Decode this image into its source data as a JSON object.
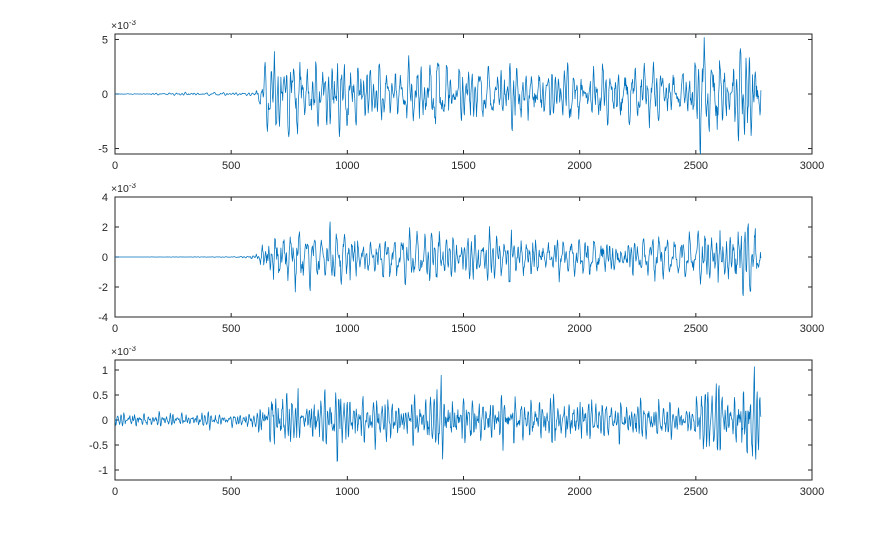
{
  "figure": {
    "background": "#ffffff",
    "axis_color": "#262626",
    "line_color": "#0072BD"
  },
  "chart_data": [
    {
      "type": "line",
      "xlim": [
        0,
        3000
      ],
      "ylim": [
        -5.5,
        5.5
      ],
      "xticks": [
        0,
        500,
        1000,
        1500,
        2000,
        2500,
        3000
      ],
      "yticks": [
        -5,
        0,
        5
      ],
      "scale_label": {
        "base": "×10",
        "exponent": "-3"
      },
      "line_color": "#0072BD",
      "grid": false,
      "legend": null,
      "signal": {
        "x_start": 0,
        "x_end": 2780,
        "step": 2,
        "seed": 101,
        "components": 9,
        "envelope": [
          [
            0,
            0.02
          ],
          [
            145,
            0.03
          ],
          [
            165,
            0.13
          ],
          [
            560,
            0.12
          ],
          [
            595,
            0.3
          ],
          [
            625,
            1.6
          ],
          [
            655,
            2.9
          ],
          [
            695,
            3.6
          ],
          [
            735,
            2.7
          ],
          [
            775,
            3.9
          ],
          [
            815,
            2.6
          ],
          [
            855,
            3.1
          ],
          [
            895,
            2.3
          ],
          [
            935,
            3.4
          ],
          [
            975,
            4.9
          ],
          [
            1015,
            3.0
          ],
          [
            1060,
            3.3
          ],
          [
            1110,
            2.3
          ],
          [
            1160,
            2.7
          ],
          [
            1220,
            2.4
          ],
          [
            1280,
            2.7
          ],
          [
            1340,
            2.3
          ],
          [
            1400,
            3.5
          ],
          [
            1450,
            2.4
          ],
          [
            1520,
            2.8
          ],
          [
            1590,
            2.3
          ],
          [
            1660,
            2.6
          ],
          [
            1730,
            2.9
          ],
          [
            1800,
            2.3
          ],
          [
            1870,
            2.6
          ],
          [
            1940,
            2.8
          ],
          [
            2010,
            2.3
          ],
          [
            2080,
            2.6
          ],
          [
            2150,
            2.2
          ],
          [
            2220,
            2.5
          ],
          [
            2290,
            2.7
          ],
          [
            2360,
            2.2
          ],
          [
            2430,
            2.1
          ],
          [
            2490,
            2.9
          ],
          [
            2530,
            4.6
          ],
          [
            2565,
            2.6
          ],
          [
            2605,
            5.3
          ],
          [
            2645,
            3.0
          ],
          [
            2685,
            4.7
          ],
          [
            2725,
            5.2
          ],
          [
            2755,
            4.5
          ],
          [
            2780,
            3.2
          ]
        ]
      }
    },
    {
      "type": "line",
      "xlim": [
        0,
        3000
      ],
      "ylim": [
        -4,
        4
      ],
      "xticks": [
        0,
        500,
        1000,
        1500,
        2000,
        2500,
        3000
      ],
      "yticks": [
        -4,
        -2,
        0,
        2,
        4
      ],
      "scale_label": {
        "base": "×10",
        "exponent": "-3"
      },
      "line_color": "#0072BD",
      "grid": false,
      "legend": null,
      "signal": {
        "x_start": 0,
        "x_end": 2780,
        "step": 2,
        "seed": 202,
        "components": 9,
        "envelope": [
          [
            0,
            0.0
          ],
          [
            505,
            0.02
          ],
          [
            530,
            0.06
          ],
          [
            565,
            0.09
          ],
          [
            595,
            0.2
          ],
          [
            625,
            0.9
          ],
          [
            655,
            1.6
          ],
          [
            695,
            2.0
          ],
          [
            735,
            1.5
          ],
          [
            775,
            2.1
          ],
          [
            815,
            1.4
          ],
          [
            855,
            1.7
          ],
          [
            895,
            1.3
          ],
          [
            935,
            1.9
          ],
          [
            975,
            2.7
          ],
          [
            1015,
            1.7
          ],
          [
            1060,
            1.8
          ],
          [
            1110,
            1.3
          ],
          [
            1160,
            1.5
          ],
          [
            1220,
            1.3
          ],
          [
            1280,
            1.5
          ],
          [
            1340,
            1.3
          ],
          [
            1400,
            1.9
          ],
          [
            1450,
            1.3
          ],
          [
            1520,
            1.5
          ],
          [
            1590,
            1.3
          ],
          [
            1660,
            1.4
          ],
          [
            1730,
            1.6
          ],
          [
            1800,
            1.3
          ],
          [
            1870,
            1.4
          ],
          [
            1940,
            1.5
          ],
          [
            2010,
            1.3
          ],
          [
            2080,
            1.4
          ],
          [
            2150,
            1.2
          ],
          [
            2220,
            1.4
          ],
          [
            2290,
            1.5
          ],
          [
            2360,
            1.2
          ],
          [
            2430,
            1.1
          ],
          [
            2490,
            1.5
          ],
          [
            2530,
            2.3
          ],
          [
            2565,
            1.4
          ],
          [
            2605,
            2.6
          ],
          [
            2645,
            1.6
          ],
          [
            2685,
            2.4
          ],
          [
            2725,
            2.6
          ],
          [
            2755,
            2.2
          ],
          [
            2780,
            1.6
          ]
        ]
      }
    },
    {
      "type": "line",
      "xlim": [
        0,
        3000
      ],
      "ylim": [
        -1.2,
        1.2
      ],
      "xticks": [
        0,
        500,
        1000,
        1500,
        2000,
        2500,
        3000
      ],
      "yticks": [
        -1,
        -0.5,
        0,
        0.5,
        1
      ],
      "scale_label": {
        "base": "×10",
        "exponent": "-3"
      },
      "line_color": "#0072BD",
      "grid": false,
      "legend": null,
      "signal": {
        "x_start": 0,
        "x_end": 2780,
        "step": 2,
        "seed": 303,
        "components": 9,
        "envelope": [
          [
            0,
            0.12
          ],
          [
            120,
            0.14
          ],
          [
            260,
            0.12
          ],
          [
            400,
            0.14
          ],
          [
            540,
            0.12
          ],
          [
            595,
            0.16
          ],
          [
            625,
            0.3
          ],
          [
            655,
            0.48
          ],
          [
            695,
            0.58
          ],
          [
            735,
            0.44
          ],
          [
            775,
            0.6
          ],
          [
            815,
            0.42
          ],
          [
            855,
            0.5
          ],
          [
            895,
            0.4
          ],
          [
            935,
            0.55
          ],
          [
            975,
            0.85
          ],
          [
            1015,
            0.5
          ],
          [
            1060,
            0.55
          ],
          [
            1110,
            0.4
          ],
          [
            1160,
            0.46
          ],
          [
            1220,
            0.42
          ],
          [
            1280,
            0.46
          ],
          [
            1340,
            0.4
          ],
          [
            1400,
            0.88
          ],
          [
            1450,
            0.45
          ],
          [
            1520,
            0.48
          ],
          [
            1590,
            0.4
          ],
          [
            1660,
            0.45
          ],
          [
            1730,
            0.5
          ],
          [
            1800,
            0.4
          ],
          [
            1870,
            0.45
          ],
          [
            1940,
            0.48
          ],
          [
            2010,
            0.4
          ],
          [
            2080,
            0.44
          ],
          [
            2150,
            0.38
          ],
          [
            2220,
            0.44
          ],
          [
            2290,
            0.46
          ],
          [
            2360,
            0.38
          ],
          [
            2430,
            0.36
          ],
          [
            2490,
            0.5
          ],
          [
            2530,
            0.82
          ],
          [
            2565,
            0.5
          ],
          [
            2605,
            0.95
          ],
          [
            2645,
            0.55
          ],
          [
            2685,
            0.88
          ],
          [
            2725,
            1.0
          ],
          [
            2755,
            0.85
          ],
          [
            2780,
            0.55
          ]
        ]
      }
    }
  ]
}
